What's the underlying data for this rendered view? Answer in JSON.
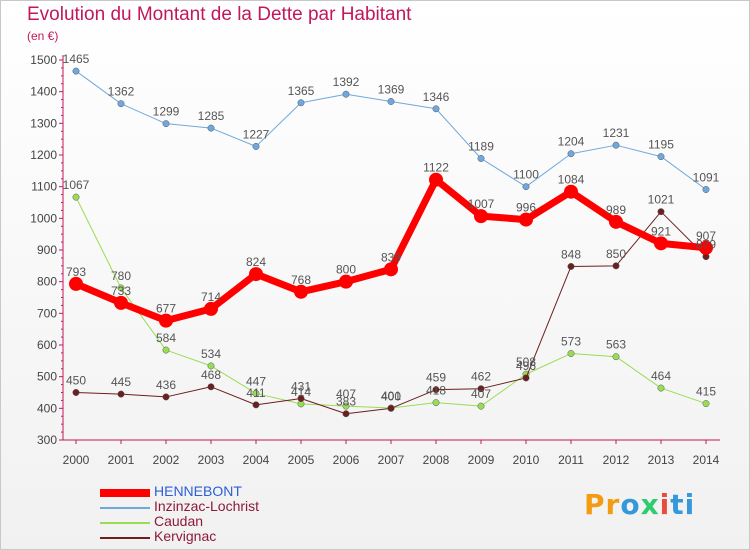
{
  "chart_data": {
    "type": "line",
    "title": "Evolution du Montant de la Dette par Habitant",
    "subtitle": "(en €)",
    "x": [
      "2000",
      "2001",
      "2002",
      "2003",
      "2004",
      "2005",
      "2006",
      "2007",
      "2008",
      "2009",
      "2010",
      "2011",
      "2012",
      "2013",
      "2014"
    ],
    "ylim": [
      300,
      1500
    ],
    "yticks": [
      300,
      400,
      500,
      600,
      700,
      800,
      900,
      1000,
      1100,
      1200,
      1300,
      1400,
      1500
    ],
    "grid": false,
    "legend_position": "bottom-left",
    "series": [
      {
        "name": "HENNEBONT",
        "color": "#ff0000",
        "width": 7,
        "values": [
          793,
          733,
          677,
          714,
          824,
          768,
          800,
          839,
          1122,
          1007,
          996,
          1084,
          989,
          921,
          907
        ]
      },
      {
        "name": "Inzinzac-Lochrist",
        "color": "#6fa8dc",
        "width": 1,
        "values": [
          1465,
          1362,
          1299,
          1285,
          1227,
          1365,
          1392,
          1369,
          1346,
          1189,
          1100,
          1204,
          1231,
          1195,
          1091
        ]
      },
      {
        "name": "Caudan",
        "color": "#99dd55",
        "width": 1,
        "values": [
          1067,
          780,
          584,
          534,
          447,
          414,
          407,
          401,
          418,
          407,
          508,
          573,
          563,
          464,
          415
        ]
      },
      {
        "name": "Kervignac",
        "color": "#6b1f1f",
        "width": 1,
        "values": [
          450,
          445,
          436,
          468,
          411,
          431,
          383,
          400,
          459,
          462,
          496,
          848,
          850,
          1021,
          879
        ]
      }
    ]
  },
  "logo": {
    "p1": "Pr",
    "p2": "o",
    "p3": "x",
    "p4": "i",
    "p5": "ti"
  }
}
